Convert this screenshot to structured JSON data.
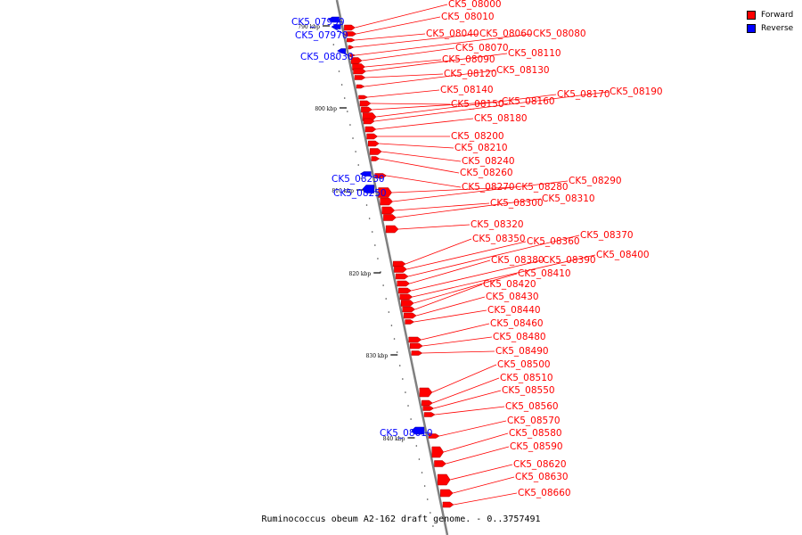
{
  "title": "Ruminococcus obeum A2-162 draft genome. - 0..3757491",
  "legend": [
    {
      "label": "Forward",
      "color": "#ff0000"
    },
    {
      "label": "Reverse",
      "color": "#0000ff"
    }
  ],
  "colors": {
    "forward": "#ff0000",
    "reverse": "#0000ff",
    "backbone": "#808080"
  },
  "scale_ticks": [
    {
      "label": "790 kbp"
    },
    {
      "label": "800 kbp"
    },
    {
      "label": "810 kbp"
    },
    {
      "label": "820 kbp"
    },
    {
      "label": "830 kbp"
    },
    {
      "label": "840 kbp"
    }
  ],
  "genes": [
    {
      "name": "CK5_07950",
      "strand": "reverse"
    },
    {
      "name": "CK5_07970",
      "strand": "reverse"
    },
    {
      "name": "CK5_08030",
      "strand": "reverse"
    },
    {
      "name": "CK5_08230",
      "strand": "reverse"
    },
    {
      "name": "CK5_08250",
      "strand": "reverse"
    },
    {
      "name": "CK5_08610",
      "strand": "reverse"
    },
    {
      "name": "CK5_08000",
      "strand": "forward"
    },
    {
      "name": "CK5_08010",
      "strand": "forward"
    },
    {
      "name": "CK5_08040",
      "strand": "forward"
    },
    {
      "name": "CK5_08060",
      "strand": "forward"
    },
    {
      "name": "CK5_08080",
      "strand": "forward"
    },
    {
      "name": "CK5_08070",
      "strand": "forward"
    },
    {
      "name": "CK5_08090",
      "strand": "forward"
    },
    {
      "name": "CK5_08110",
      "strand": "forward"
    },
    {
      "name": "CK5_08120",
      "strand": "forward"
    },
    {
      "name": "CK5_08130",
      "strand": "forward"
    },
    {
      "name": "CK5_08140",
      "strand": "forward"
    },
    {
      "name": "CK5_08150",
      "strand": "forward"
    },
    {
      "name": "CK5_08160",
      "strand": "forward"
    },
    {
      "name": "CK5_08170",
      "strand": "forward"
    },
    {
      "name": "CK5_08190",
      "strand": "forward"
    },
    {
      "name": "CK5_08180",
      "strand": "forward"
    },
    {
      "name": "CK5_08200",
      "strand": "forward"
    },
    {
      "name": "CK5_08210",
      "strand": "forward"
    },
    {
      "name": "CK5_08240",
      "strand": "forward"
    },
    {
      "name": "CK5_08260",
      "strand": "forward"
    },
    {
      "name": "CK5_08270",
      "strand": "forward"
    },
    {
      "name": "CK5_08280",
      "strand": "forward"
    },
    {
      "name": "CK5_08290",
      "strand": "forward"
    },
    {
      "name": "CK5_08300",
      "strand": "forward"
    },
    {
      "name": "CK5_08310",
      "strand": "forward"
    },
    {
      "name": "CK5_08320",
      "strand": "forward"
    },
    {
      "name": "CK5_08350",
      "strand": "forward"
    },
    {
      "name": "CK5_08360",
      "strand": "forward"
    },
    {
      "name": "CK5_08370",
      "strand": "forward"
    },
    {
      "name": "CK5_08380",
      "strand": "forward"
    },
    {
      "name": "CK5_08390",
      "strand": "forward"
    },
    {
      "name": "CK5_08400",
      "strand": "forward"
    },
    {
      "name": "CK5_08410",
      "strand": "forward"
    },
    {
      "name": "CK5_08420",
      "strand": "forward"
    },
    {
      "name": "CK5_08430",
      "strand": "forward"
    },
    {
      "name": "CK5_08440",
      "strand": "forward"
    },
    {
      "name": "CK5_08460",
      "strand": "forward"
    },
    {
      "name": "CK5_08480",
      "strand": "forward"
    },
    {
      "name": "CK5_08490",
      "strand": "forward"
    },
    {
      "name": "CK5_08500",
      "strand": "forward"
    },
    {
      "name": "CK5_08510",
      "strand": "forward"
    },
    {
      "name": "CK5_08550",
      "strand": "forward"
    },
    {
      "name": "CK5_08560",
      "strand": "forward"
    },
    {
      "name": "CK5_08570",
      "strand": "forward"
    },
    {
      "name": "CK5_08580",
      "strand": "forward"
    },
    {
      "name": "CK5_08590",
      "strand": "forward"
    },
    {
      "name": "CK5_08620",
      "strand": "forward"
    },
    {
      "name": "CK5_08630",
      "strand": "forward"
    },
    {
      "name": "CK5_08660",
      "strand": "forward"
    }
  ]
}
